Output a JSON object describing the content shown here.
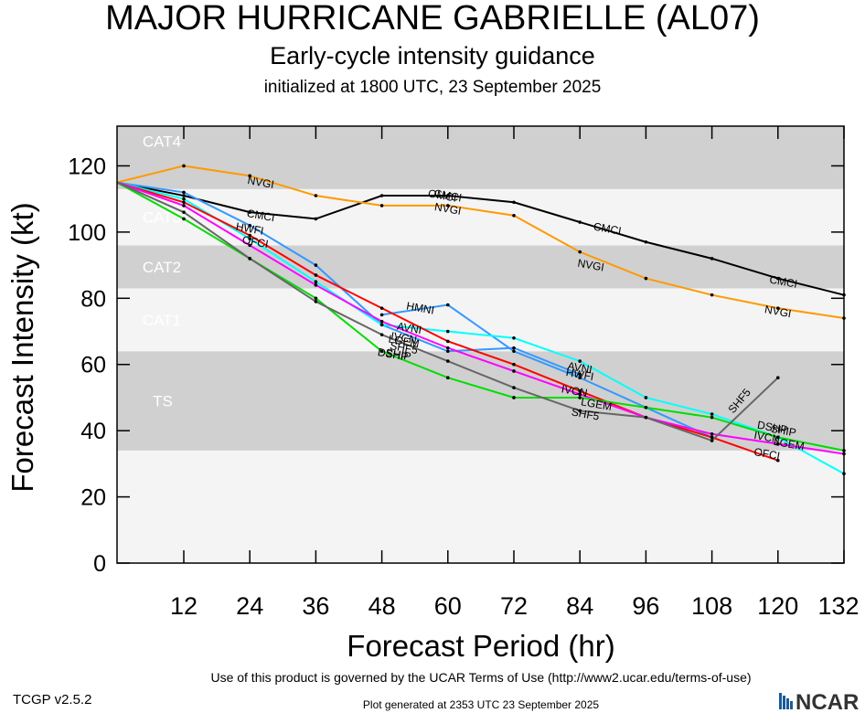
{
  "header": {
    "title": "MAJOR HURRICANE GABRIELLE (AL07)",
    "subtitle": "Early-cycle intensity guidance",
    "init": "initialized at 1800 UTC, 23 September 2025"
  },
  "footer": {
    "terms": "Use of this product is governed by the UCAR Terms of Use (http://www2.ucar.edu/terms-of-use)",
    "version": "TCGP v2.5.2",
    "generated": "Plot generated at 2353 UTC   23 September 2025",
    "logo": "NCAR"
  },
  "chart_data": {
    "type": "line",
    "xlabel": "Forecast Period (hr)",
    "ylabel": "Forecast Intensity (kt)",
    "xlim": [
      3,
      132
    ],
    "ylim": [
      0,
      132
    ],
    "xticks": [
      12,
      24,
      36,
      48,
      60,
      72,
      84,
      96,
      108,
      120,
      132
    ],
    "yticks": [
      0,
      20,
      40,
      60,
      80,
      100,
      120
    ],
    "bands": [
      {
        "label": "TS",
        "min": 34,
        "max": 64,
        "color": "#d0d0d0"
      },
      {
        "label": "CAT1",
        "min": 64,
        "max": 83,
        "color": "#f4f4f4"
      },
      {
        "label": "CAT2",
        "min": 83,
        "max": 96,
        "color": "#d0d0d0"
      },
      {
        "label": "CAT3",
        "min": 96,
        "max": 113,
        "color": "#f4f4f4"
      },
      {
        "label": "CAT4",
        "min": 113,
        "max": 137,
        "color": "#d0d0d0"
      }
    ],
    "below_band_color": "#f4f4f4",
    "series": [
      {
        "name": "CMCI",
        "color": "#000000",
        "x": [
          0,
          12,
          24,
          36,
          48,
          60,
          72,
          84,
          96,
          108,
          120,
          132
        ],
        "y": [
          115,
          111,
          106,
          104,
          111,
          111,
          109,
          103,
          97,
          92,
          86,
          81
        ],
        "labels": [
          [
            26,
            105
          ],
          [
            60,
            111
          ],
          [
            89,
            101
          ],
          [
            121,
            85
          ]
        ]
      },
      {
        "name": "NVGI",
        "color": "#ff9900",
        "x": [
          0,
          12,
          24,
          36,
          48,
          60,
          72,
          84,
          96,
          108,
          120,
          132
        ],
        "y": [
          115,
          120,
          117,
          111,
          108,
          108,
          105,
          94,
          86,
          81,
          77,
          74
        ],
        "labels": [
          [
            26,
            115
          ],
          [
            60,
            107
          ],
          [
            86,
            90
          ],
          [
            120,
            76
          ]
        ]
      },
      {
        "name": "OMCI",
        "color": "#000000",
        "x": [],
        "y": [],
        "labels": [
          [
            59,
            111
          ]
        ]
      },
      {
        "name": "HWFI",
        "color": "#3399ff",
        "x": [
          0,
          12,
          24,
          36,
          48,
          60,
          72,
          84
        ],
        "y": [
          115,
          112,
          102,
          90,
          72,
          64,
          65,
          57
        ],
        "labels": [
          [
            24,
            101
          ],
          [
            84,
            57
          ]
        ]
      },
      {
        "name": "HMNI",
        "color": "#3399ff",
        "x": [
          48,
          60,
          72,
          84,
          96,
          108
        ],
        "y": [
          75,
          78,
          64,
          56,
          47,
          38
        ],
        "labels": [
          [
            55,
            77
          ]
        ]
      },
      {
        "name": "AVNI",
        "color": "#00ffff",
        "x": [
          0,
          12,
          24,
          36,
          48,
          60,
          72,
          84,
          96,
          108,
          120,
          132
        ],
        "y": [
          115,
          110,
          98,
          85,
          72,
          70,
          68,
          61,
          50,
          45,
          38,
          27
        ],
        "labels": [
          [
            53,
            71
          ],
          [
            84,
            59
          ]
        ]
      },
      {
        "name": "OFCI",
        "color": "#ff0000",
        "x": [
          0,
          12,
          24,
          36,
          48,
          60,
          72,
          84,
          96,
          108,
          120
        ],
        "y": [
          115,
          109,
          99,
          87,
          77,
          67,
          60,
          52,
          44,
          38,
          31
        ],
        "labels": [
          [
            25,
            97
          ],
          [
            118,
            33
          ]
        ]
      },
      {
        "name": "IVCN",
        "color": "#ff00ff",
        "x": [
          0,
          12,
          24,
          36,
          48,
          60,
          72,
          84,
          96,
          108,
          120,
          132
        ],
        "y": [
          115,
          108,
          96,
          84,
          73,
          65,
          58,
          51,
          44,
          39,
          36,
          33
        ],
        "labels": [
          [
            52,
            68
          ],
          [
            83,
            52
          ],
          [
            118,
            38
          ]
        ]
      },
      {
        "name": "SHIP",
        "color": "#00dd00",
        "x": [
          0,
          12,
          24,
          36,
          48,
          60,
          72,
          84,
          96,
          108,
          120,
          132
        ],
        "y": [
          115,
          104,
          92,
          80,
          64,
          56,
          50,
          50,
          47,
          44,
          38,
          34
        ],
        "labels": [
          [
            51,
            63
          ],
          [
            121,
            40
          ]
        ]
      },
      {
        "name": "DSHP",
        "color": "#00dd00",
        "x": [],
        "y": [],
        "labels": [
          [
            50,
            63
          ],
          [
            119,
            41
          ]
        ]
      },
      {
        "name": "LGEM",
        "color": "#00dd00",
        "x": [],
        "y": [],
        "labels": [
          [
            52,
            67
          ],
          [
            87,
            48
          ],
          [
            122,
            36
          ]
        ]
      },
      {
        "name": "SHF5",
        "color": "#666666",
        "x": [
          0,
          12,
          24,
          36,
          48,
          60,
          72,
          84,
          96,
          108,
          120
        ],
        "y": [
          115,
          106,
          92,
          79,
          69,
          61,
          53,
          46,
          44,
          37,
          56
        ],
        "labels": [
          [
            52,
            65
          ],
          [
            85,
            45
          ],
          [
            113,
            49
          ]
        ]
      }
    ]
  }
}
